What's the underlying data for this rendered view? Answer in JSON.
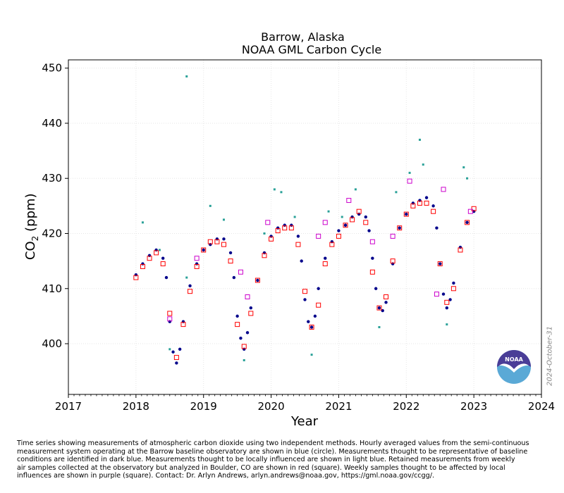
{
  "chart_data": {
    "type": "scatter",
    "title": "Barrow, Alaska",
    "subtitle": "NOAA GML Carbon Cycle",
    "xlabel": "Year",
    "ylabel_main": "CO",
    "ylabel_sub": "2",
    "ylabel_unit": "(ppm)",
    "xlim": [
      2017,
      2024
    ],
    "ylim": [
      390.8,
      451.5
    ],
    "xticks": [
      2017,
      2018,
      2019,
      2020,
      2021,
      2022,
      2023,
      2024
    ],
    "yticks": [
      400,
      410,
      420,
      430,
      440,
      450
    ],
    "grid": true,
    "series": [
      {
        "color": "#00008b",
        "marker": "circle",
        "x": [
          2018.0,
          2018.1,
          2018.2,
          2018.3,
          2018.4,
          2018.45,
          2018.5,
          2018.55,
          2018.6,
          2018.65,
          2018.7,
          2018.8,
          2018.9,
          2019.0,
          2019.1,
          2019.2,
          2019.3,
          2019.4,
          2019.45,
          2019.5,
          2019.55,
          2019.6,
          2019.65,
          2019.7,
          2019.8,
          2019.9,
          2020.0,
          2020.1,
          2020.2,
          2020.3,
          2020.4,
          2020.45,
          2020.5,
          2020.55,
          2020.6,
          2020.65,
          2020.7,
          2020.8,
          2020.9,
          2021.0,
          2021.1,
          2021.2,
          2021.3,
          2021.4,
          2021.45,
          2021.5,
          2021.55,
          2021.6,
          2021.65,
          2021.7,
          2021.8,
          2021.9,
          2022.0,
          2022.1,
          2022.2,
          2022.3,
          2022.4,
          2022.45,
          2022.5,
          2022.55,
          2022.6,
          2022.65,
          2022.7,
          2022.8,
          2022.9,
          2023.0
        ],
        "y": [
          412.5,
          414.5,
          416.0,
          417.0,
          415.5,
          412.0,
          404.0,
          398.5,
          396.5,
          399.0,
          404.0,
          410.5,
          414.5,
          417.0,
          418.0,
          419.0,
          419.0,
          416.5,
          412.0,
          405.0,
          401.0,
          399.0,
          402.0,
          406.5,
          411.5,
          416.5,
          419.5,
          421.0,
          421.5,
          421.5,
          419.5,
          415.0,
          408.0,
          404.0,
          403.0,
          405.0,
          410.0,
          415.5,
          418.5,
          420.5,
          421.5,
          423.0,
          423.5,
          423.0,
          420.5,
          415.5,
          410.0,
          406.5,
          406.0,
          407.5,
          414.5,
          421.0,
          423.5,
          425.5,
          426.0,
          426.5,
          425.0,
          421.0,
          414.5,
          409.0,
          406.5,
          408.0,
          411.0,
          417.5,
          422.0,
          424.0
        ]
      },
      {
        "color": "#2aa198",
        "marker": "square",
        "x": [
          2018.1,
          2018.35,
          2018.5,
          2018.75,
          2019.1,
          2019.3,
          2019.6,
          2019.9,
          2020.05,
          2020.15,
          2020.35,
          2020.6,
          2020.85,
          2021.05,
          2021.25,
          2021.6,
          2021.85,
          2022.05,
          2022.25,
          2022.6,
          2022.85,
          2022.9,
          2018.75,
          2022.2
        ],
        "y": [
          422.0,
          417.0,
          399.0,
          412.0,
          425.0,
          422.5,
          397.0,
          420.0,
          428.0,
          427.5,
          423.0,
          398.0,
          424.0,
          423.0,
          428.0,
          403.0,
          427.5,
          431.0,
          432.5,
          403.5,
          432.0,
          430.0,
          448.5,
          437.0
        ]
      },
      {
        "color": "#ff0000",
        "marker": "open-square",
        "x": [
          2018.0,
          2018.1,
          2018.2,
          2018.3,
          2018.4,
          2018.5,
          2018.6,
          2018.7,
          2018.8,
          2018.9,
          2019.0,
          2019.1,
          2019.2,
          2019.3,
          2019.4,
          2019.5,
          2019.6,
          2019.7,
          2019.8,
          2019.9,
          2020.0,
          2020.1,
          2020.2,
          2020.3,
          2020.4,
          2020.5,
          2020.6,
          2020.7,
          2020.8,
          2020.9,
          2021.0,
          2021.1,
          2021.2,
          2021.3,
          2021.4,
          2021.5,
          2021.6,
          2021.7,
          2021.8,
          2021.9,
          2022.0,
          2022.1,
          2022.2,
          2022.3,
          2022.4,
          2022.5,
          2022.6,
          2022.7,
          2022.8,
          2022.9,
          2023.0
        ],
        "y": [
          412.0,
          414.0,
          415.5,
          416.5,
          414.5,
          405.5,
          397.5,
          403.5,
          409.5,
          414.0,
          417.0,
          418.5,
          418.5,
          418.0,
          415.0,
          403.5,
          399.5,
          405.5,
          411.5,
          416.0,
          419.0,
          420.5,
          421.0,
          421.0,
          418.0,
          409.5,
          403.0,
          407.0,
          414.5,
          418.0,
          419.5,
          421.5,
          422.5,
          424.0,
          422.0,
          413.0,
          406.5,
          408.5,
          415.0,
          421.0,
          423.5,
          425.0,
          425.5,
          425.5,
          424.0,
          414.5,
          407.5,
          410.0,
          417.0,
          422.0,
          424.5
        ]
      },
      {
        "color": "#cc00cc",
        "marker": "open-square",
        "x": [
          2018.9,
          2019.55,
          2019.65,
          2019.95,
          2020.7,
          2020.8,
          2021.15,
          2021.5,
          2021.8,
          2022.05,
          2022.45,
          2022.55,
          2022.95,
          2018.5
        ],
        "y": [
          415.5,
          413.0,
          408.5,
          422.0,
          419.5,
          422.0,
          426.0,
          418.5,
          419.5,
          429.5,
          409.0,
          428.0,
          424.0,
          404.5
        ]
      }
    ]
  },
  "caption": {
    "lines": [
      "Time series showing measurements of atmospheric carbon dioxide using two independent methods.   Hourly averaged values from the semi-continuous",
      "measurement system operating at the Barrow baseline observatory are shown in blue (circle).  Measurements thought to be representative of baseline",
      "conditions are identified in dark blue.  Measurements thought to be locally influenced are shown in light blue.  Retained measurements from weekly",
      "air samples collected at the observatory but analyzed in Boulder, CO are shown in red (square).  Weekly samples thought to be affected by local",
      "influences are shown in purple (square).  Contact:  Dr. Arlyn Andrews, arlyn.andrews@noaa.gov, https://gml.noaa.gov/ccgg/."
    ]
  },
  "datestamp": "2024-October-31",
  "logo": {
    "text": "NOAA",
    "colors": {
      "top": "#4a3d97",
      "bottom": "#5aa9d6"
    }
  }
}
